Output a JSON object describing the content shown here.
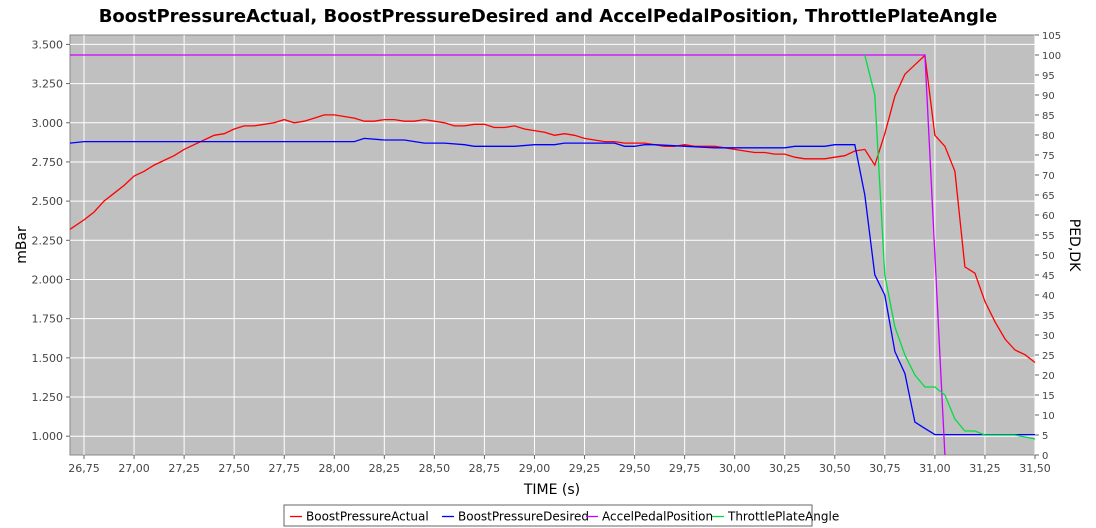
{
  "chart_data": {
    "type": "line",
    "title": "BoostPressureActual, BoostPressureDesired and AccelPedalPosition, ThrottlePlateAngle",
    "xlabel": "TIME (s)",
    "ylabel": "mBar",
    "y2label": "PED,DK",
    "xlim": [
      26.68,
      31.5
    ],
    "ylim": [
      0.88,
      3.56
    ],
    "y2lim": [
      0,
      105
    ],
    "x_ticks": [
      "26,75",
      "27,00",
      "27,25",
      "27,50",
      "27,75",
      "28,00",
      "28,25",
      "28,50",
      "28,75",
      "29,00",
      "29,25",
      "29,50",
      "29,75",
      "30,00",
      "30,25",
      "30,50",
      "30,75",
      "31,00",
      "31,25",
      "31,50"
    ],
    "y_ticks": [
      "1.000",
      "1.250",
      "1.500",
      "1.750",
      "2.000",
      "2.250",
      "2.500",
      "2.750",
      "3.000",
      "3.250",
      "3.500"
    ],
    "y2_ticks": [
      "0",
      "5",
      "10",
      "15",
      "20",
      "25",
      "30",
      "35",
      "40",
      "45",
      "50",
      "55",
      "60",
      "65",
      "70",
      "75",
      "80",
      "85",
      "90",
      "95",
      "100",
      "105"
    ],
    "background": "#c0c0c0",
    "grid": true,
    "legend_position": "bottom",
    "series": [
      {
        "name": "BoostPressureActual",
        "axis": "left",
        "color": "#ff0000",
        "points": [
          [
            26.68,
            2.32
          ],
          [
            26.75,
            2.38
          ],
          [
            26.8,
            2.43
          ],
          [
            26.85,
            2.5
          ],
          [
            26.9,
            2.55
          ],
          [
            26.95,
            2.6
          ],
          [
            27.0,
            2.66
          ],
          [
            27.05,
            2.69
          ],
          [
            27.1,
            2.73
          ],
          [
            27.15,
            2.76
          ],
          [
            27.2,
            2.79
          ],
          [
            27.25,
            2.83
          ],
          [
            27.3,
            2.86
          ],
          [
            27.35,
            2.89
          ],
          [
            27.4,
            2.92
          ],
          [
            27.45,
            2.93
          ],
          [
            27.5,
            2.96
          ],
          [
            27.55,
            2.98
          ],
          [
            27.6,
            2.98
          ],
          [
            27.65,
            2.99
          ],
          [
            27.7,
            3.0
          ],
          [
            27.75,
            3.02
          ],
          [
            27.8,
            3.0
          ],
          [
            27.85,
            3.01
          ],
          [
            27.9,
            3.03
          ],
          [
            27.95,
            3.05
          ],
          [
            28.0,
            3.05
          ],
          [
            28.05,
            3.04
          ],
          [
            28.1,
            3.03
          ],
          [
            28.15,
            3.01
          ],
          [
            28.2,
            3.01
          ],
          [
            28.25,
            3.02
          ],
          [
            28.3,
            3.02
          ],
          [
            28.35,
            3.01
          ],
          [
            28.4,
            3.01
          ],
          [
            28.45,
            3.02
          ],
          [
            28.5,
            3.01
          ],
          [
            28.55,
            3.0
          ],
          [
            28.6,
            2.98
          ],
          [
            28.65,
            2.98
          ],
          [
            28.7,
            2.99
          ],
          [
            28.75,
            2.99
          ],
          [
            28.8,
            2.97
          ],
          [
            28.85,
            2.97
          ],
          [
            28.9,
            2.98
          ],
          [
            28.95,
            2.96
          ],
          [
            29.0,
            2.95
          ],
          [
            29.05,
            2.94
          ],
          [
            29.1,
            2.92
          ],
          [
            29.15,
            2.93
          ],
          [
            29.2,
            2.92
          ],
          [
            29.25,
            2.9
          ],
          [
            29.3,
            2.89
          ],
          [
            29.35,
            2.88
          ],
          [
            29.4,
            2.88
          ],
          [
            29.45,
            2.87
          ],
          [
            29.5,
            2.87
          ],
          [
            29.55,
            2.87
          ],
          [
            29.6,
            2.86
          ],
          [
            29.65,
            2.85
          ],
          [
            29.7,
            2.85
          ],
          [
            29.75,
            2.86
          ],
          [
            29.8,
            2.85
          ],
          [
            29.85,
            2.85
          ],
          [
            29.9,
            2.85
          ],
          [
            29.95,
            2.84
          ],
          [
            30.0,
            2.83
          ],
          [
            30.05,
            2.82
          ],
          [
            30.1,
            2.81
          ],
          [
            30.15,
            2.81
          ],
          [
            30.2,
            2.8
          ],
          [
            30.25,
            2.8
          ],
          [
            30.3,
            2.78
          ],
          [
            30.35,
            2.77
          ],
          [
            30.4,
            2.77
          ],
          [
            30.45,
            2.77
          ],
          [
            30.5,
            2.78
          ],
          [
            30.55,
            2.79
          ],
          [
            30.6,
            2.82
          ],
          [
            30.65,
            2.83
          ],
          [
            30.7,
            2.73
          ],
          [
            30.75,
            2.93
          ],
          [
            30.8,
            3.17
          ],
          [
            30.85,
            3.31
          ],
          [
            30.9,
            3.37
          ],
          [
            30.95,
            3.43
          ],
          [
            31.0,
            2.92
          ],
          [
            31.05,
            2.85
          ],
          [
            31.1,
            2.69
          ],
          [
            31.15,
            2.08
          ],
          [
            31.2,
            2.04
          ],
          [
            31.25,
            1.86
          ],
          [
            31.3,
            1.73
          ],
          [
            31.35,
            1.62
          ],
          [
            31.4,
            1.55
          ],
          [
            31.45,
            1.52
          ],
          [
            31.5,
            1.47
          ]
        ]
      },
      {
        "name": "BoostPressureDesired",
        "axis": "left",
        "color": "#0000ff",
        "points": [
          [
            26.68,
            2.87
          ],
          [
            26.75,
            2.88
          ],
          [
            27.0,
            2.88
          ],
          [
            27.5,
            2.88
          ],
          [
            28.0,
            2.88
          ],
          [
            28.1,
            2.88
          ],
          [
            28.15,
            2.9
          ],
          [
            28.25,
            2.89
          ],
          [
            28.35,
            2.89
          ],
          [
            28.45,
            2.87
          ],
          [
            28.55,
            2.87
          ],
          [
            28.65,
            2.86
          ],
          [
            28.7,
            2.85
          ],
          [
            28.9,
            2.85
          ],
          [
            29.0,
            2.86
          ],
          [
            29.1,
            2.86
          ],
          [
            29.15,
            2.87
          ],
          [
            29.4,
            2.87
          ],
          [
            29.45,
            2.85
          ],
          [
            29.5,
            2.85
          ],
          [
            29.55,
            2.86
          ],
          [
            29.6,
            2.86
          ],
          [
            29.9,
            2.84
          ],
          [
            30.0,
            2.84
          ],
          [
            30.1,
            2.84
          ],
          [
            30.25,
            2.84
          ],
          [
            30.3,
            2.85
          ],
          [
            30.45,
            2.85
          ],
          [
            30.5,
            2.86
          ],
          [
            30.6,
            2.86
          ],
          [
            30.65,
            2.54
          ],
          [
            30.7,
            2.03
          ],
          [
            30.75,
            1.9
          ],
          [
            30.8,
            1.54
          ],
          [
            30.85,
            1.4
          ],
          [
            30.9,
            1.09
          ],
          [
            30.95,
            1.05
          ],
          [
            31.0,
            1.01
          ],
          [
            31.5,
            1.01
          ]
        ]
      },
      {
        "name": "AccelPedalPosition",
        "axis": "right",
        "color": "#cc00ff",
        "points": [
          [
            26.68,
            100
          ],
          [
            30.95,
            100
          ],
          [
            31.05,
            0
          ]
        ]
      },
      {
        "name": "ThrottlePlateAngle",
        "axis": "right",
        "color": "#00dd44",
        "points": [
          [
            30.65,
            100
          ],
          [
            30.7,
            90
          ],
          [
            30.75,
            45
          ],
          [
            30.8,
            32
          ],
          [
            30.85,
            25
          ],
          [
            30.9,
            20
          ],
          [
            30.95,
            17
          ],
          [
            31.0,
            17
          ],
          [
            31.05,
            15
          ],
          [
            31.1,
            9
          ],
          [
            31.15,
            6
          ],
          [
            31.2,
            6
          ],
          [
            31.25,
            5
          ],
          [
            31.4,
            5
          ],
          [
            31.5,
            4
          ]
        ]
      }
    ]
  }
}
